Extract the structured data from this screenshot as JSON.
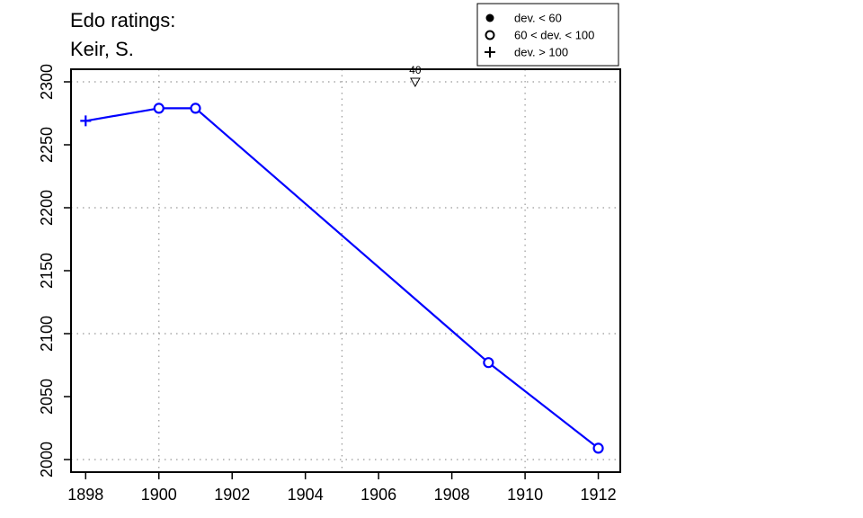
{
  "chart_data": {
    "type": "line",
    "title_lines": [
      "Edo ratings:",
      "Keir, S."
    ],
    "xlabel": "",
    "ylabel": "",
    "xlim": [
      1897.6,
      1912.6
    ],
    "ylim": [
      1990,
      2310
    ],
    "x_ticks": [
      1898,
      1900,
      1902,
      1904,
      1906,
      1908,
      1910,
      1912
    ],
    "y_ticks": [
      2000,
      2050,
      2100,
      2150,
      2200,
      2250,
      2300
    ],
    "grid_x": [
      1900,
      1905,
      1910
    ],
    "grid_y": [
      2000,
      2100,
      2200,
      2300
    ],
    "grid": true,
    "series": [
      {
        "color": "#0000ff",
        "points": [
          {
            "x": 1898,
            "y": 2269,
            "marker": "plus"
          },
          {
            "x": 1900,
            "y": 2279,
            "marker": "circle"
          },
          {
            "x": 1901,
            "y": 2279,
            "marker": "circle"
          },
          {
            "x": 1909,
            "y": 2077,
            "marker": "circle"
          },
          {
            "x": 1912,
            "y": 2009,
            "marker": "circle"
          }
        ]
      }
    ],
    "annotation": {
      "x": 1907,
      "y": 2300,
      "label": "40",
      "marker": "triangle-down"
    },
    "legend": {
      "placement": "top-right",
      "entries": [
        {
          "label": "dev. < 60",
          "marker": "filled-circle"
        },
        {
          "label": "60 < dev. < 100",
          "marker": "open-circle"
        },
        {
          "label": "dev. > 100",
          "marker": "plus"
        }
      ]
    }
  }
}
